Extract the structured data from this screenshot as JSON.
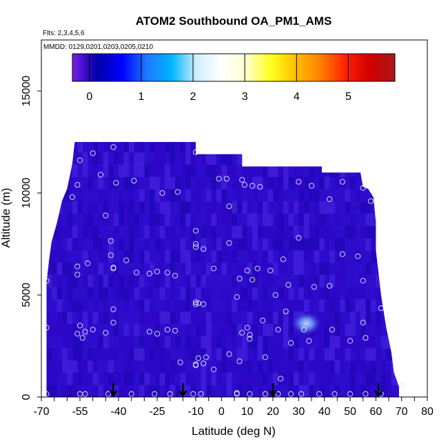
{
  "chart_data": {
    "type": "heatmap",
    "title": "ATOM2 Southbound OA_PM1_AMS",
    "subtitle_flights": "Flts: 2,3,4,5,6",
    "subtitle_dates": "MMDD: 0129,0201,0203,0205,0210",
    "xlabel": "Latitude (deg N)",
    "ylabel": "Altitude (m)",
    "xlim": [
      -70,
      80
    ],
    "ylim": [
      0,
      17500
    ],
    "x_tick_labels": [
      "-70",
      "-55",
      "-40",
      "-25",
      "-10",
      "0",
      "10",
      "20",
      "30",
      "40",
      "50",
      "60",
      "70",
      "80"
    ],
    "x_tick_values": [
      -70,
      -55,
      -40,
      -25,
      -10,
      0,
      10,
      20,
      30,
      40,
      50,
      60,
      70,
      80
    ],
    "x_minor_ticks": [
      -65,
      -60,
      -50,
      -45,
      -35,
      -30,
      -20,
      -15,
      -5,
      5,
      15,
      25,
      35,
      45,
      55,
      65,
      75
    ],
    "y_tick_labels": [
      "0",
      "5000",
      "10000",
      "15000"
    ],
    "y_tick_values": [
      0,
      5000,
      10000,
      15000
    ],
    "colorbar": {
      "range": [
        -0.33,
        5.9
      ],
      "tick_labels": [
        "0",
        "1",
        "2",
        "3",
        "4",
        "5"
      ],
      "tick_values": [
        0,
        1,
        2,
        3,
        4,
        5
      ],
      "colors": [
        "#7a1ee8",
        "#0000a8",
        "#0000ff",
        "#1e78ff",
        "#00b4ff",
        "#cfeeff",
        "#ffffff",
        "#ffffd0",
        "#ffff20",
        "#ffc000",
        "#ff8000",
        "#ff2000",
        "#d00000",
        "#a81818"
      ]
    },
    "field_colors": {
      "background": "#2e08c8",
      "dark": "#1c0ab0",
      "mid": "#3010d0",
      "bright": "#4a2ae6",
      "hotspot": "#8fb8f2"
    },
    "coverage_outline_lat_alt": [
      [
        -68,
        0
      ],
      [
        -68,
        3300
      ],
      [
        -68,
        5600
      ],
      [
        -67,
        6700
      ],
      [
        -66,
        7600
      ],
      [
        -64,
        8500
      ],
      [
        -62,
        9600
      ],
      [
        -60,
        10200
      ],
      [
        -58,
        11400
      ],
      [
        -57,
        12500
      ],
      [
        -10,
        12500
      ],
      [
        -10,
        11900
      ],
      [
        8,
        11900
      ],
      [
        8,
        11300
      ],
      [
        39,
        11300
      ],
      [
        39,
        11000
      ],
      [
        54,
        11000
      ],
      [
        55,
        10300
      ],
      [
        57,
        10200
      ],
      [
        59,
        9800
      ],
      [
        60,
        8600
      ],
      [
        60,
        7200
      ],
      [
        61,
        6100
      ],
      [
        62,
        5000
      ],
      [
        64,
        3400
      ],
      [
        66,
        2200
      ],
      [
        67,
        1200
      ],
      [
        69,
        500
      ],
      [
        69,
        0
      ]
    ],
    "hotspot": {
      "lat": 33,
      "alt": 3600,
      "lat_halfwidth": 6,
      "alt_halfwidth": 600,
      "value": 1.8
    },
    "sample_points": [
      [
        -42,
        12250
      ],
      [
        -50,
        11950
      ],
      [
        -55,
        11600
      ],
      [
        -47,
        10900
      ],
      [
        -34,
        10600
      ],
      [
        -56,
        10400
      ],
      [
        -41,
        10500
      ],
      [
        -23,
        10000
      ],
      [
        -17,
        10050
      ],
      [
        -10,
        12000
      ],
      [
        -58,
        9800
      ],
      [
        -45,
        8900
      ],
      [
        -1,
        10700
      ],
      [
        2,
        10700
      ],
      [
        9,
        10400
      ],
      [
        12,
        10350
      ],
      [
        15,
        10300
      ],
      [
        8,
        10650
      ],
      [
        30,
        10550
      ],
      [
        35,
        10350
      ],
      [
        47,
        10550
      ],
      [
        55,
        10250
      ],
      [
        42,
        9700
      ],
      [
        58,
        9600
      ],
      [
        3,
        9350
      ],
      [
        -10,
        8150
      ],
      [
        -10,
        7500
      ],
      [
        -10,
        7350
      ],
      [
        -7,
        7250
      ],
      [
        3,
        7550
      ],
      [
        -43,
        7650
      ],
      [
        -43,
        6950
      ],
      [
        -37,
        6700
      ],
      [
        -42,
        6300
      ],
      [
        -42,
        6350
      ],
      [
        -52,
        6550
      ],
      [
        -56,
        6400
      ],
      [
        -68,
        5700
      ],
      [
        -56,
        6000
      ],
      [
        -33,
        6100
      ],
      [
        -28,
        6050
      ],
      [
        -25,
        6150
      ],
      [
        -21,
        6100
      ],
      [
        -18,
        5950
      ],
      [
        -3,
        6300
      ],
      [
        10,
        6200
      ],
      [
        14,
        6300
      ],
      [
        19,
        6200
      ],
      [
        24,
        6750
      ],
      [
        30,
        7800
      ],
      [
        47,
        7000
      ],
      [
        53,
        6900
      ],
      [
        12,
        5750
      ],
      [
        7,
        5800
      ],
      [
        26,
        5500
      ],
      [
        36,
        5400
      ],
      [
        42,
        5450
      ],
      [
        55,
        5700
      ],
      [
        6,
        4900
      ],
      [
        -10,
        4650
      ],
      [
        -9,
        4600
      ],
      [
        -7,
        4550
      ],
      [
        -10,
        4550
      ],
      [
        21,
        5000
      ],
      [
        25,
        4200
      ],
      [
        -42,
        4300
      ],
      [
        -42,
        3650
      ],
      [
        -55,
        3500
      ],
      [
        -53,
        3200
      ],
      [
        -56,
        3100
      ],
      [
        -50,
        3300
      ],
      [
        -45,
        3150
      ],
      [
        -68,
        3400
      ],
      [
        -54,
        2900
      ],
      [
        -28,
        3200
      ],
      [
        -25,
        3100
      ],
      [
        -21,
        3300
      ],
      [
        -18,
        3250
      ],
      [
        10,
        3400
      ],
      [
        11,
        3050
      ],
      [
        8,
        3150
      ],
      [
        16,
        3750
      ],
      [
        22,
        3300
      ],
      [
        27,
        2650
      ],
      [
        32,
        3300
      ],
      [
        34,
        2750
      ],
      [
        43,
        3300
      ],
      [
        50,
        2750
      ],
      [
        55,
        3650
      ],
      [
        56,
        2900
      ],
      [
        62,
        4350
      ],
      [
        11,
        2850
      ],
      [
        -9,
        1900
      ],
      [
        -6,
        1950
      ],
      [
        -10,
        1600
      ],
      [
        -10,
        1550
      ],
      [
        -7,
        1650
      ],
      [
        -3,
        1350
      ],
      [
        -16,
        1700
      ],
      [
        3,
        2100
      ],
      [
        7,
        1750
      ],
      [
        17,
        1950
      ],
      [
        23,
        900
      ],
      [
        -68,
        150
      ],
      [
        -55,
        150
      ],
      [
        -53,
        150
      ],
      [
        -44,
        150
      ],
      [
        -35,
        150
      ],
      [
        -26,
        150
      ],
      [
        -20,
        150
      ],
      [
        -11,
        150
      ],
      [
        -8,
        150
      ],
      [
        6,
        150
      ],
      [
        6,
        200
      ],
      [
        11,
        150
      ],
      [
        17,
        150
      ],
      [
        22,
        150
      ],
      [
        27,
        150
      ],
      [
        31,
        150
      ],
      [
        38,
        150
      ],
      [
        44,
        150
      ],
      [
        50,
        150
      ],
      [
        56,
        150
      ],
      [
        62,
        150
      ],
      [
        70,
        550
      ]
    ],
    "flight_markers_lat": [
      -42,
      -15,
      20,
      61
    ]
  }
}
